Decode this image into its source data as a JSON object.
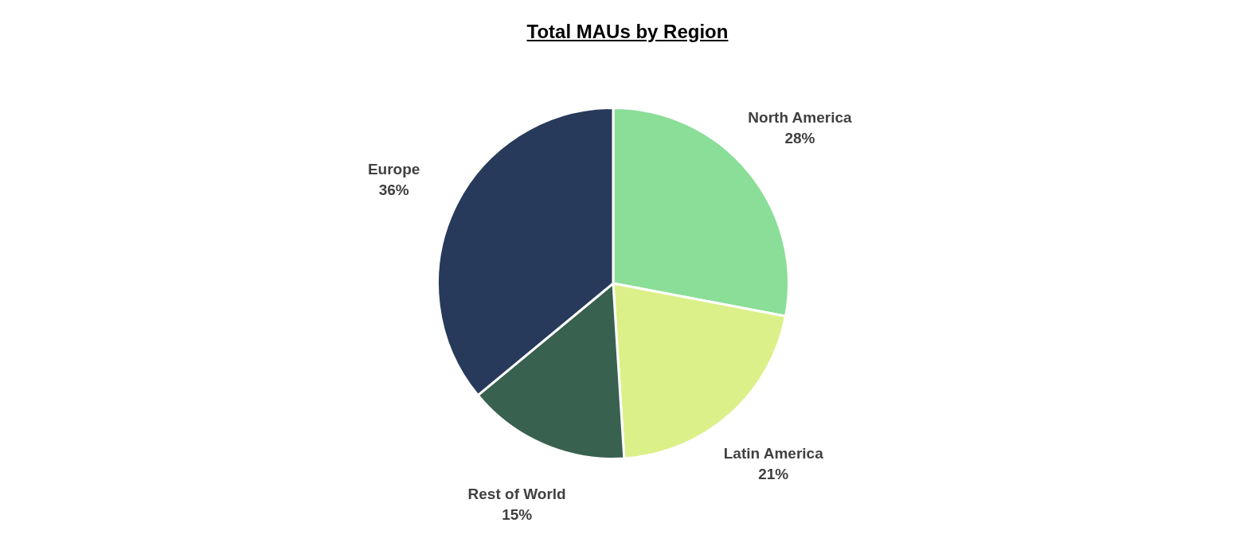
{
  "chart_data": {
    "type": "pie",
    "title": "Total MAUs by Region",
    "categories": [
      "North America",
      "Latin America",
      "Rest of World",
      "Europe"
    ],
    "values": [
      28,
      21,
      15,
      36
    ],
    "colors": [
      "#8ade98",
      "#dcf08a",
      "#386150",
      "#283a5b"
    ],
    "value_labels": [
      "28%",
      "21%",
      "15%",
      "36%"
    ]
  }
}
